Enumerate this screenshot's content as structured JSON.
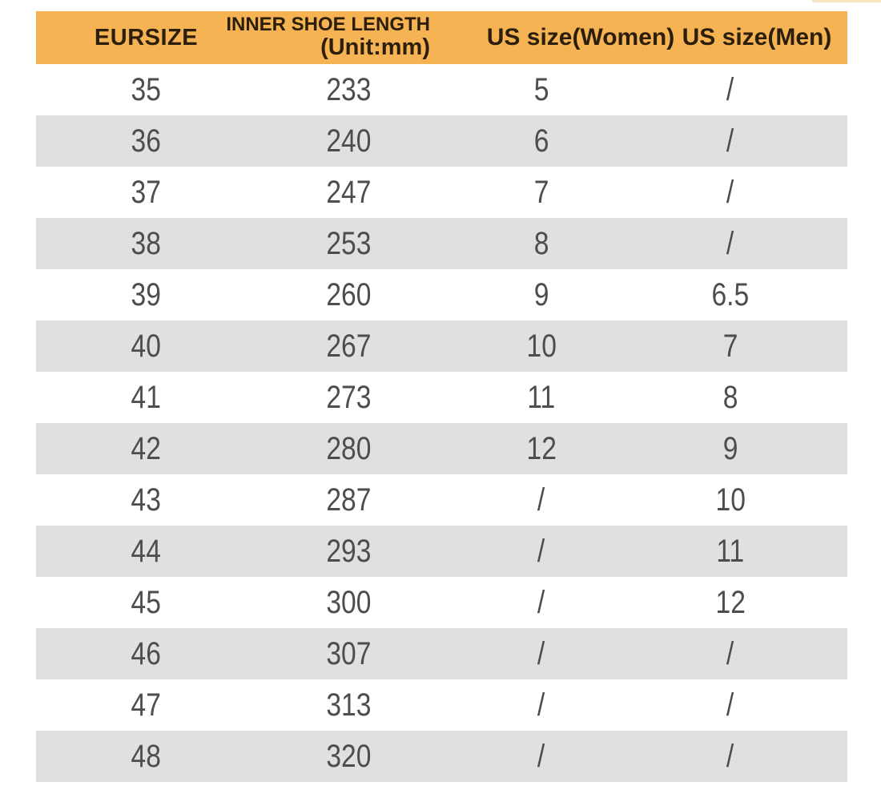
{
  "colors": {
    "header_bg": "#F5B354",
    "header_text": "#2B1E0A",
    "stripe_row_bg": "#E0E0E0",
    "plain_row_bg": "#FFFFFF",
    "value_text": "#4D4D4D"
  },
  "chart_data": {
    "type": "table",
    "columns": [
      {
        "label": "EURSIZE"
      },
      {
        "label": "INNER SHOE LENGTH",
        "sublabel": "(Unit:mm)"
      },
      {
        "label": "US size(Women)"
      },
      {
        "label": "US size(Men)"
      }
    ],
    "rows": [
      [
        "35",
        "233",
        "5",
        "/"
      ],
      [
        "36",
        "240",
        "6",
        "/"
      ],
      [
        "37",
        "247",
        "7",
        "/"
      ],
      [
        "38",
        "253",
        "8",
        "/"
      ],
      [
        "39",
        "260",
        "9",
        "6.5"
      ],
      [
        "40",
        "267",
        "10",
        "7"
      ],
      [
        "41",
        "273",
        "11",
        "8"
      ],
      [
        "42",
        "280",
        "12",
        "9"
      ],
      [
        "43",
        "287",
        "/",
        "10"
      ],
      [
        "44",
        "293",
        "/",
        "11"
      ],
      [
        "45",
        "300",
        "/",
        "12"
      ],
      [
        "46",
        "307",
        "/",
        "/"
      ],
      [
        "47",
        "313",
        "/",
        "/"
      ],
      [
        "48",
        "320",
        "/",
        "/"
      ]
    ]
  }
}
